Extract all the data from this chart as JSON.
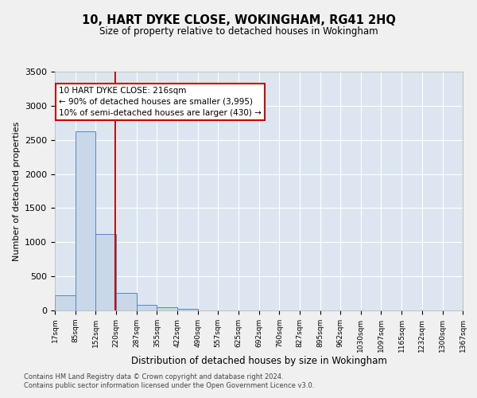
{
  "title": "10, HART DYKE CLOSE, WOKINGHAM, RG41 2HQ",
  "subtitle": "Size of property relative to detached houses in Wokingham",
  "xlabel": "Distribution of detached houses by size in Wokingham",
  "ylabel": "Number of detached properties",
  "footnote1": "Contains HM Land Registry data © Crown copyright and database right 2024.",
  "footnote2": "Contains public sector information licensed under the Open Government Licence v3.0.",
  "annotation_title": "10 HART DYKE CLOSE: 216sqm",
  "annotation_line1": "← 90% of detached houses are smaller (3,995)",
  "annotation_line2": "10% of semi-detached houses are larger (430) →",
  "bar_color": "#c8d8e8",
  "bar_edge_color": "#5588bb",
  "vline_color": "#cc0000",
  "vline_x": 216,
  "annotation_box_color": "#ffffff",
  "annotation_box_edge": "#cc0000",
  "bg_color": "#dde6f0",
  "grid_color": "#ffffff",
  "bins": [
    17,
    85,
    152,
    220,
    287,
    355,
    422,
    490,
    557,
    625,
    692,
    760,
    827,
    895,
    962,
    1030,
    1097,
    1165,
    1232,
    1300,
    1367
  ],
  "counts": [
    220,
    2620,
    1120,
    255,
    80,
    45,
    20,
    0,
    0,
    0,
    0,
    0,
    0,
    0,
    0,
    0,
    0,
    0,
    0,
    0
  ],
  "ylim": [
    0,
    3500
  ],
  "yticks": [
    0,
    500,
    1000,
    1500,
    2000,
    2500,
    3000,
    3500
  ],
  "fig_bg": "#f0f0f0"
}
